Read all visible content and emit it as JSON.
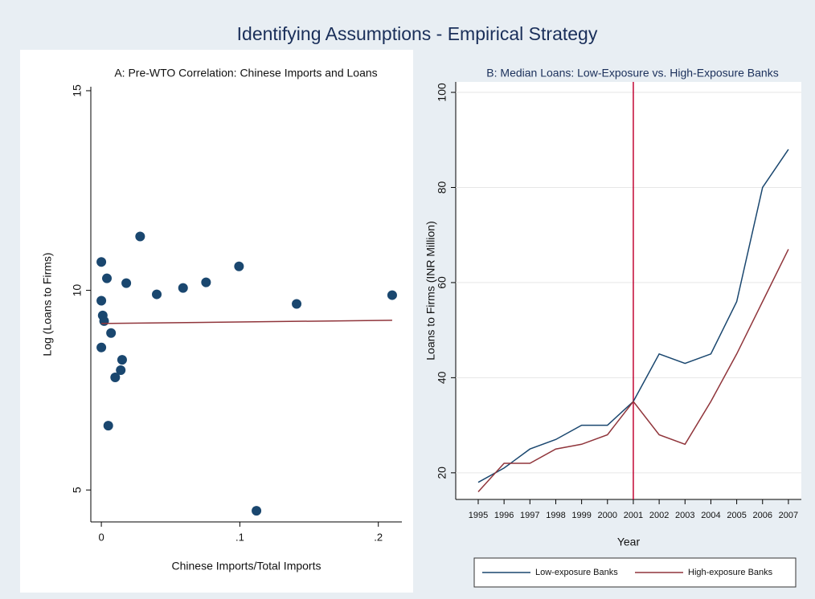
{
  "title": "Identifying Assumptions - Empirical Strategy",
  "chart_data": [
    {
      "type": "scatter",
      "title": "A: Pre-WTO Correlation: Chinese Imports and Loans",
      "x_label": "Chinese Imports/Total Imports",
      "y_label": "Log (Loans to Firms)",
      "x": [
        0.0,
        0.004,
        0.0,
        0.001,
        0.002,
        0.007,
        0.0,
        0.015,
        0.014,
        0.01,
        0.005,
        0.028,
        0.018,
        0.04,
        0.059,
        0.0756,
        0.0994,
        0.141,
        0.21,
        0.112
      ],
      "y": [
        10.71,
        10.3,
        9.74,
        9.37,
        9.23,
        8.93,
        8.57,
        8.26,
        8.0,
        7.82,
        6.61,
        11.35,
        10.18,
        9.9,
        10.06,
        10.2,
        10.6,
        9.66,
        9.88,
        4.48
      ],
      "color": "#1a476f",
      "fit": {
        "x": [
          0,
          0.21
        ],
        "y": [
          9.17,
          9.25
        ],
        "color": "#90353b"
      },
      "xlim": [
        -0.0076,
        0.217
      ],
      "ylim": [
        4.2,
        15.1
      ],
      "xticks": [
        0,
        {
          "value": 0.1,
          "label": ".1"
        },
        {
          "value": 0.2,
          "label": ".2"
        }
      ],
      "yticks": [
        5,
        10,
        15
      ],
      "grid": false
    },
    {
      "type": "line",
      "title": "B: Median Loans: Low-Exposure vs. High-Exposure Banks",
      "x_label": "Year",
      "y_label": "Loans to Firms (INR Million)",
      "x": [
        1995,
        1996,
        1997,
        1998,
        1999,
        2000,
        2001,
        2002,
        2003,
        2004,
        2005,
        2006,
        2007
      ],
      "series": [
        {
          "name": "Low-exposure Banks",
          "color": "#1a476f",
          "values": [
            18,
            21,
            25,
            27,
            30,
            30,
            35,
            45,
            43,
            45,
            56,
            80,
            88
          ]
        },
        {
          "name": "High-exposure Banks",
          "color": "#90353b",
          "values": [
            16,
            22,
            22,
            25,
            26,
            28,
            35,
            28,
            26,
            35,
            45,
            56,
            67
          ]
        }
      ],
      "vline": 2001,
      "vline_color": "#c10534",
      "xlim": [
        1994.13,
        2007.5
      ],
      "ylim": [
        14.4,
        102.2
      ],
      "xticks": [
        1995,
        1996,
        1997,
        1998,
        1999,
        2000,
        2001,
        2002,
        2003,
        2004,
        2005,
        2006,
        2007
      ],
      "yticks": [
        20,
        40,
        60,
        80,
        100
      ],
      "grid": true,
      "legend": "bottom"
    }
  ]
}
